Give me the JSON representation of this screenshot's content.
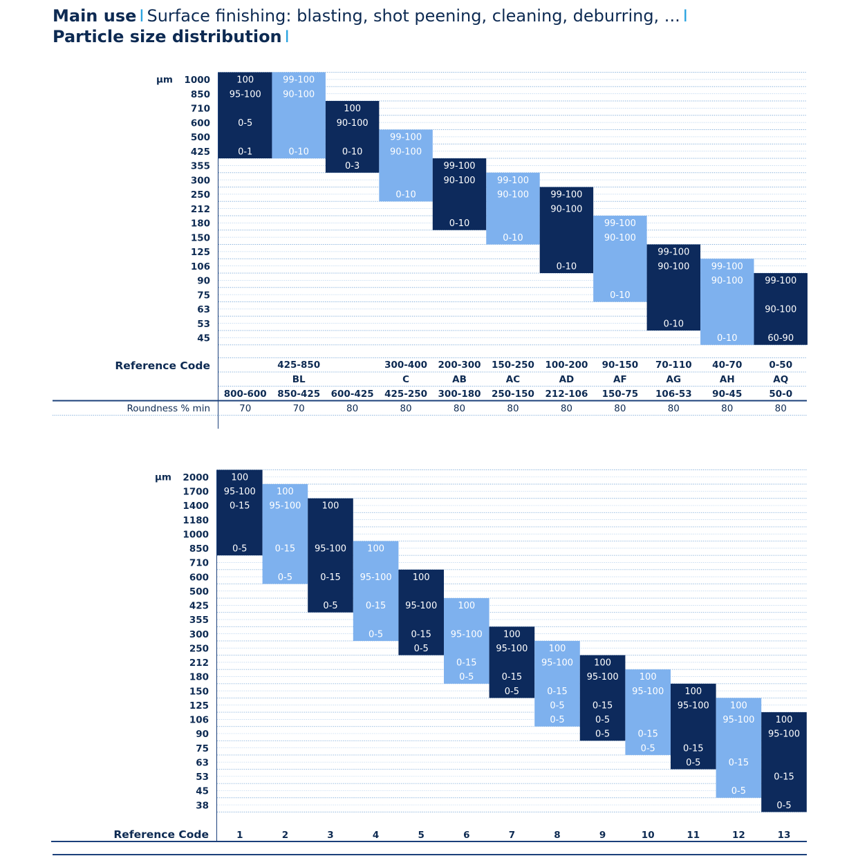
{
  "header": {
    "main_use_label": "Main use",
    "main_use_value": "Surface finishing: blasting, shot peening, cleaning, deburring, ...",
    "psd_label": "Particle size distribution",
    "separator": "I"
  },
  "colors": {
    "dark": "#0d2a5c",
    "light": "#7eb1ee",
    "text": "#0d2a52",
    "rule": "#1a3f7a"
  },
  "table1": {
    "unit": "µm",
    "sizes": [
      "1000",
      "850",
      "710",
      "600",
      "500",
      "425",
      "355",
      "300",
      "250",
      "212",
      "180",
      "150",
      "125",
      "106",
      "90",
      "75",
      "63",
      "53",
      "45"
    ],
    "columns": [
      {
        "shade": "dark",
        "top": 0,
        "bottom": 6,
        "cells": [
          {
            "r": 0,
            "t": "100"
          },
          {
            "r": 1,
            "t": "95-100"
          },
          {
            "r": 3,
            "t": "0-5"
          },
          {
            "r": 5,
            "t": "0-1"
          }
        ],
        "code1": "",
        "code2": "",
        "code3": "800-600",
        "roundness": "70"
      },
      {
        "shade": "light",
        "top": 0,
        "bottom": 6,
        "cells": [
          {
            "r": 0,
            "t": "99-100"
          },
          {
            "r": 1,
            "t": "90-100"
          },
          {
            "r": 5,
            "t": "0-10"
          }
        ],
        "code1": "425-850",
        "code2": "BL",
        "code3": "850-425",
        "roundness": "70"
      },
      {
        "shade": "dark",
        "top": 2,
        "bottom": 7,
        "cells": [
          {
            "r": 2,
            "t": "100"
          },
          {
            "r": 3,
            "t": "90-100"
          },
          {
            "r": 5,
            "t": "0-10"
          },
          {
            "r": 6,
            "t": "0-3"
          }
        ],
        "code1": "",
        "code2": "",
        "code3": "600-425",
        "roundness": "80"
      },
      {
        "shade": "light",
        "top": 4,
        "bottom": 9,
        "cells": [
          {
            "r": 4,
            "t": "99-100"
          },
          {
            "r": 5,
            "t": "90-100"
          },
          {
            "r": 8,
            "t": "0-10"
          }
        ],
        "code1": "300-400",
        "code2": "C",
        "code3": "425-250",
        "roundness": "80"
      },
      {
        "shade": "dark",
        "top": 6,
        "bottom": 11,
        "cells": [
          {
            "r": 6,
            "t": "99-100"
          },
          {
            "r": 7,
            "t": "90-100"
          },
          {
            "r": 10,
            "t": "0-10"
          }
        ],
        "code1": "200-300",
        "code2": "AB",
        "code3": "300-180",
        "roundness": "80"
      },
      {
        "shade": "light",
        "top": 7,
        "bottom": 12,
        "cells": [
          {
            "r": 7,
            "t": "99-100"
          },
          {
            "r": 8,
            "t": "90-100"
          },
          {
            "r": 11,
            "t": "0-10"
          }
        ],
        "code1": "150-250",
        "code2": "AC",
        "code3": "250-150",
        "roundness": "80"
      },
      {
        "shade": "dark",
        "top": 8,
        "bottom": 14,
        "cells": [
          {
            "r": 8,
            "t": "99-100"
          },
          {
            "r": 9,
            "t": "90-100"
          },
          {
            "r": 13,
            "t": "0-10"
          }
        ],
        "code1": "100-200",
        "code2": "AD",
        "code3": "212-106",
        "roundness": "80"
      },
      {
        "shade": "light",
        "top": 10,
        "bottom": 16,
        "cells": [
          {
            "r": 10,
            "t": "99-100"
          },
          {
            "r": 11,
            "t": "90-100"
          },
          {
            "r": 15,
            "t": "0-10"
          }
        ],
        "code1": "90-150",
        "code2": "AF",
        "code3": "150-75",
        "roundness": "80"
      },
      {
        "shade": "dark",
        "top": 12,
        "bottom": 18,
        "cells": [
          {
            "r": 12,
            "t": "99-100"
          },
          {
            "r": 13,
            "t": "90-100"
          },
          {
            "r": 17,
            "t": "0-10"
          }
        ],
        "code1": "70-110",
        "code2": "AG",
        "code3": "106-53",
        "roundness": "80"
      },
      {
        "shade": "light",
        "top": 13,
        "bottom": 19,
        "cells": [
          {
            "r": 13,
            "t": "99-100"
          },
          {
            "r": 14,
            "t": "90-100"
          },
          {
            "r": 18,
            "t": "0-10"
          }
        ],
        "code1": "40-70",
        "code2": "AH",
        "code3": "90-45",
        "roundness": "80"
      },
      {
        "shade": "dark",
        "top": 14,
        "bottom": 19,
        "cells": [
          {
            "r": 14,
            "t": "99-100"
          },
          {
            "r": 16,
            "t": "90-100"
          },
          {
            "r": 18,
            "t": "60-90"
          }
        ],
        "code1": "0-50",
        "code2": "AQ",
        "code3": "50-0",
        "roundness": "80"
      }
    ],
    "reference_code_label": "Reference Code",
    "roundness_label": "Roundness % min"
  },
  "table2": {
    "unit": "µm",
    "sizes": [
      "2000",
      "1700",
      "1400",
      "1180",
      "1000",
      "850",
      "710",
      "600",
      "500",
      "425",
      "355",
      "300",
      "250",
      "212",
      "180",
      "150",
      "125",
      "106",
      "90",
      "75",
      "63",
      "53",
      "45",
      "38"
    ],
    "columns": [
      {
        "shade": "dark",
        "top": 0,
        "bottom": 6,
        "cells": [
          {
            "r": 0,
            "t": "100"
          },
          {
            "r": 1,
            "t": "95-100"
          },
          {
            "r": 2,
            "t": "0-15"
          },
          {
            "r": 5,
            "t": "0-5"
          }
        ],
        "code": "1"
      },
      {
        "shade": "light",
        "top": 1,
        "bottom": 8,
        "cells": [
          {
            "r": 1,
            "t": "100"
          },
          {
            "r": 2,
            "t": "95-100"
          },
          {
            "r": 5,
            "t": "0-15"
          },
          {
            "r": 7,
            "t": "0-5"
          }
        ],
        "code": "2"
      },
      {
        "shade": "dark",
        "top": 2,
        "bottom": 10,
        "cells": [
          {
            "r": 2,
            "t": "100"
          },
          {
            "r": 5,
            "t": "95-100"
          },
          {
            "r": 7,
            "t": "0-15"
          },
          {
            "r": 9,
            "t": "0-5"
          }
        ],
        "code": "3"
      },
      {
        "shade": "light",
        "top": 5,
        "bottom": 12,
        "cells": [
          {
            "r": 5,
            "t": "100"
          },
          {
            "r": 7,
            "t": "95-100"
          },
          {
            "r": 9,
            "t": "0-15"
          },
          {
            "r": 11,
            "t": "0-5"
          }
        ],
        "code": "4"
      },
      {
        "shade": "dark",
        "top": 7,
        "bottom": 13,
        "cells": [
          {
            "r": 7,
            "t": "100"
          },
          {
            "r": 9,
            "t": "95-100"
          },
          {
            "r": 11,
            "t": "0-15"
          },
          {
            "r": 12,
            "t": "0-5"
          }
        ],
        "code": "5"
      },
      {
        "shade": "light",
        "top": 9,
        "bottom": 15,
        "cells": [
          {
            "r": 9,
            "t": "100"
          },
          {
            "r": 11,
            "t": "95-100"
          },
          {
            "r": 13,
            "t": "0-15"
          },
          {
            "r": 14,
            "t": "0-5"
          }
        ],
        "code": "6"
      },
      {
        "shade": "dark",
        "top": 11,
        "bottom": 16,
        "cells": [
          {
            "r": 11,
            "t": "100"
          },
          {
            "r": 12,
            "t": "95-100"
          },
          {
            "r": 14,
            "t": "0-15"
          },
          {
            "r": 15,
            "t": "0-5"
          }
        ],
        "code": "7"
      },
      {
        "shade": "light",
        "top": 12,
        "bottom": 18,
        "cells": [
          {
            "r": 12,
            "t": "100"
          },
          {
            "r": 13,
            "t": "95-100"
          },
          {
            "r": 15,
            "t": "0-15"
          },
          {
            "r": 16,
            "t": "0-5"
          },
          {
            "r": 17,
            "t": "0-5"
          }
        ],
        "code": "8"
      },
      {
        "shade": "dark",
        "top": 13,
        "bottom": 19,
        "cells": [
          {
            "r": 13,
            "t": "100"
          },
          {
            "r": 14,
            "t": "95-100"
          },
          {
            "r": 16,
            "t": "0-15"
          },
          {
            "r": 17,
            "t": "0-5"
          },
          {
            "r": 18,
            "t": "0-5"
          }
        ],
        "code": "9"
      },
      {
        "shade": "light",
        "top": 14,
        "bottom": 20,
        "cells": [
          {
            "r": 14,
            "t": "100"
          },
          {
            "r": 15,
            "t": "95-100"
          },
          {
            "r": 18,
            "t": "0-15"
          },
          {
            "r": 19,
            "t": "0-5"
          }
        ],
        "code": "10"
      },
      {
        "shade": "dark",
        "top": 15,
        "bottom": 21,
        "cells": [
          {
            "r": 15,
            "t": "100"
          },
          {
            "r": 16,
            "t": "95-100"
          },
          {
            "r": 19,
            "t": "0-15"
          },
          {
            "r": 20,
            "t": "0-5"
          }
        ],
        "code": "11"
      },
      {
        "shade": "light",
        "top": 16,
        "bottom": 23,
        "cells": [
          {
            "r": 16,
            "t": "100"
          },
          {
            "r": 17,
            "t": "95-100"
          },
          {
            "r": 20,
            "t": "0-15"
          },
          {
            "r": 22,
            "t": "0-5"
          }
        ],
        "code": "12"
      },
      {
        "shade": "dark",
        "top": 17,
        "bottom": 24,
        "cells": [
          {
            "r": 17,
            "t": "100"
          },
          {
            "r": 18,
            "t": "95-100"
          },
          {
            "r": 21,
            "t": "0-15"
          },
          {
            "r": 23,
            "t": "0-5"
          }
        ],
        "code": "13"
      }
    ],
    "reference_code_label": "Reference Code"
  }
}
